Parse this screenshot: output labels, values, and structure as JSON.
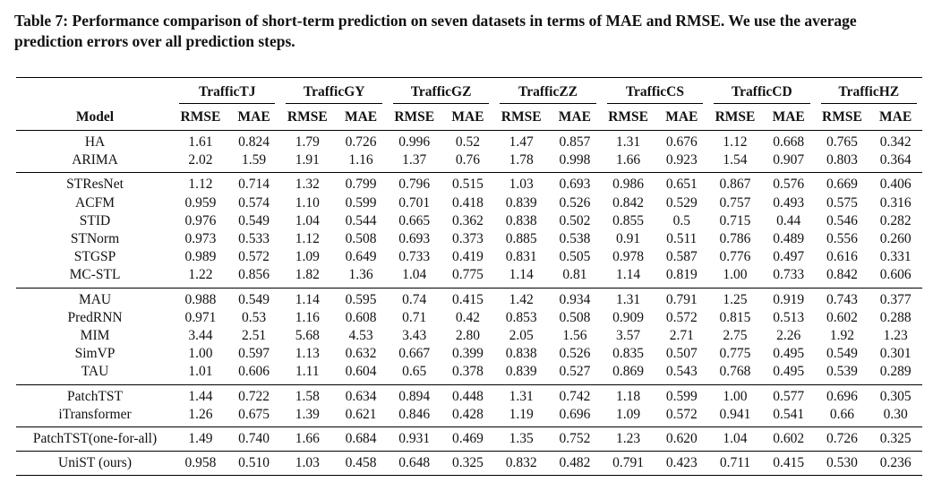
{
  "caption": "Table 7: Performance comparison of short-term prediction on seven datasets in terms of MAE and RMSE. We use the average prediction errors over all prediction steps.",
  "header": {
    "model_label": "Model",
    "datasets": [
      "TrafficTJ",
      "TrafficGY",
      "TrafficGZ",
      "TrafficZZ",
      "TrafficCS",
      "TrafficCD",
      "TrafficHZ"
    ],
    "metrics": [
      "RMSE",
      "MAE"
    ]
  },
  "groups": [
    {
      "rows": [
        {
          "model": "HA",
          "values": [
            "1.61",
            "0.824",
            "1.79",
            "0.726",
            "0.996",
            "0.52",
            "1.47",
            "0.857",
            "1.31",
            "0.676",
            "1.12",
            "0.668",
            "0.765",
            "0.342"
          ]
        },
        {
          "model": "ARIMA",
          "values": [
            "2.02",
            "1.59",
            "1.91",
            "1.16",
            "1.37",
            "0.76",
            "1.78",
            "0.998",
            "1.66",
            "0.923",
            "1.54",
            "0.907",
            "0.803",
            "0.364"
          ]
        }
      ]
    },
    {
      "rows": [
        {
          "model": "STResNet",
          "values": [
            "1.12",
            "0.714",
            "1.32",
            "0.799",
            "0.796",
            "0.515",
            "1.03",
            "0.693",
            "0.986",
            "0.651",
            "0.867",
            "0.576",
            "0.669",
            "0.406"
          ]
        },
        {
          "model": "ACFM",
          "values": [
            "0.959",
            "0.574",
            "1.10",
            "0.599",
            "0.701",
            "0.418",
            "0.839",
            "0.526",
            "0.842",
            "0.529",
            "0.757",
            "0.493",
            "0.575",
            "0.316"
          ]
        },
        {
          "model": "STID",
          "values": [
            "0.976",
            "0.549",
            "1.04",
            "0.544",
            "0.665",
            "0.362",
            "0.838",
            "0.502",
            "0.855",
            "0.5",
            "0.715",
            "0.44",
            "0.546",
            "0.282"
          ]
        },
        {
          "model": "STNorm",
          "values": [
            "0.973",
            "0.533",
            "1.12",
            "0.508",
            "0.693",
            "0.373",
            "0.885",
            "0.538",
            "0.91",
            "0.511",
            "0.786",
            "0.489",
            "0.556",
            "0.260"
          ]
        },
        {
          "model": "STGSP",
          "values": [
            "0.989",
            "0.572",
            "1.09",
            "0.649",
            "0.733",
            "0.419",
            "0.831",
            "0.505",
            "0.978",
            "0.587",
            "0.776",
            "0.497",
            "0.616",
            "0.331"
          ]
        },
        {
          "model": "MC-STL",
          "values": [
            "1.22",
            "0.856",
            "1.82",
            "1.36",
            "1.04",
            "0.775",
            "1.14",
            "0.81",
            "1.14",
            "0.819",
            "1.00",
            "0.733",
            "0.842",
            "0.606"
          ]
        }
      ]
    },
    {
      "rows": [
        {
          "model": "MAU",
          "values": [
            "0.988",
            "0.549",
            "1.14",
            "0.595",
            "0.74",
            "0.415",
            "1.42",
            "0.934",
            "1.31",
            "0.791",
            "1.25",
            "0.919",
            "0.743",
            "0.377"
          ]
        },
        {
          "model": "PredRNN",
          "values": [
            "0.971",
            "0.53",
            "1.16",
            "0.608",
            "0.71",
            "0.42",
            "0.853",
            "0.508",
            "0.909",
            "0.572",
            "0.815",
            "0.513",
            "0.602",
            "0.288"
          ]
        },
        {
          "model": "MIM",
          "values": [
            "3.44",
            "2.51",
            "5.68",
            "4.53",
            "3.43",
            "2.80",
            "2.05",
            "1.56",
            "3.57",
            "2.71",
            "2.75",
            "2.26",
            "1.92",
            "1.23"
          ]
        },
        {
          "model": "SimVP",
          "values": [
            "1.00",
            "0.597",
            "1.13",
            "0.632",
            "0.667",
            "0.399",
            "0.838",
            "0.526",
            "0.835",
            "0.507",
            "0.775",
            "0.495",
            "0.549",
            "0.301"
          ]
        },
        {
          "model": "TAU",
          "values": [
            "1.01",
            "0.606",
            "1.11",
            "0.604",
            "0.65",
            "0.378",
            "0.839",
            "0.527",
            "0.869",
            "0.543",
            "0.768",
            "0.495",
            "0.539",
            "0.289"
          ]
        }
      ]
    },
    {
      "rows": [
        {
          "model": "PatchTST",
          "values": [
            "1.44",
            "0.722",
            "1.58",
            "0.634",
            "0.894",
            "0.448",
            "1.31",
            "0.742",
            "1.18",
            "0.599",
            "1.00",
            "0.577",
            "0.696",
            "0.305"
          ]
        },
        {
          "model": "iTransformer",
          "values": [
            "1.26",
            "0.675",
            "1.39",
            "0.621",
            "0.846",
            "0.428",
            "1.19",
            "0.696",
            "1.09",
            "0.572",
            "0.941",
            "0.541",
            "0.66",
            "0.30"
          ]
        }
      ]
    },
    {
      "rows": [
        {
          "model": "PatchTST(one-for-all)",
          "values": [
            "1.49",
            "0.740",
            "1.66",
            "0.684",
            "0.931",
            "0.469",
            "1.35",
            "0.752",
            "1.23",
            "0.620",
            "1.04",
            "0.602",
            "0.726",
            "0.325"
          ]
        }
      ]
    },
    {
      "rows": [
        {
          "model": "UniST (ours)",
          "values": [
            "0.958",
            "0.510",
            "1.03",
            "0.458",
            "0.648",
            "0.325",
            "0.832",
            "0.482",
            "0.791",
            "0.423",
            "0.711",
            "0.415",
            "0.530",
            "0.236"
          ]
        }
      ]
    }
  ]
}
